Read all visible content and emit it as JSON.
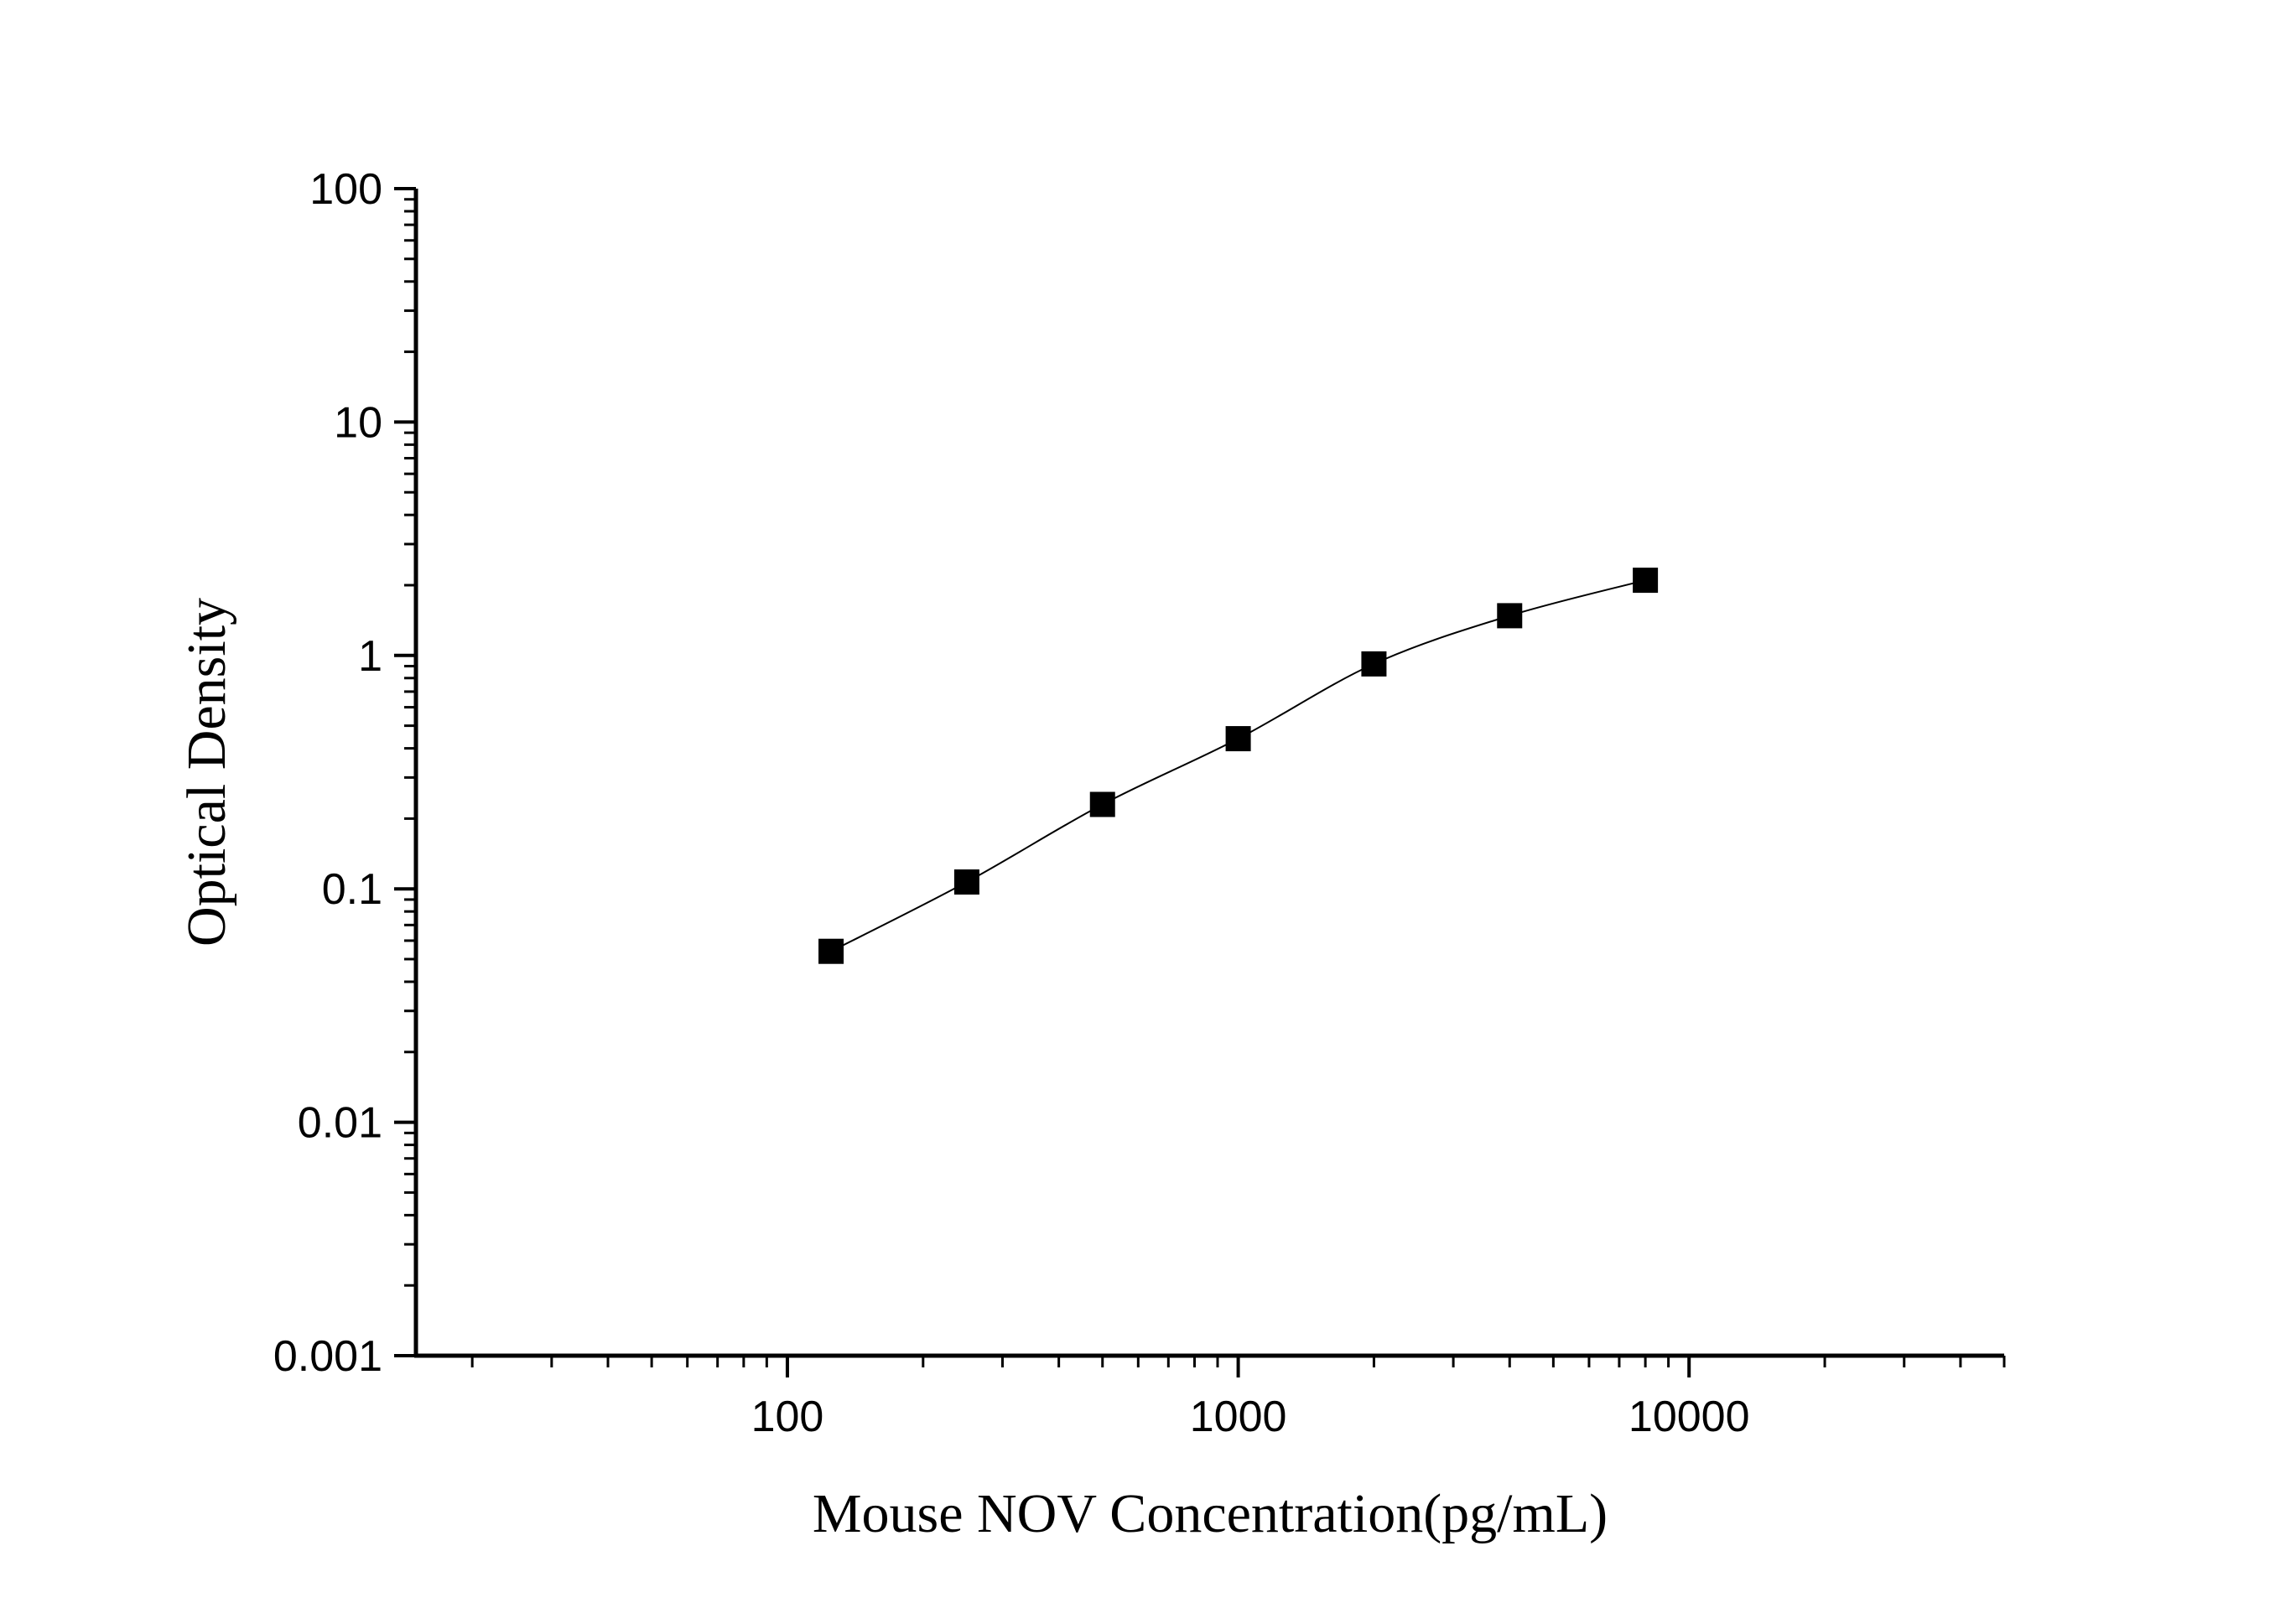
{
  "chart_data": {
    "type": "scatter",
    "title": "",
    "xlabel": "Mouse NOV Concentration(pg/mL)",
    "ylabel": "Optical Density",
    "x_scale": "log",
    "y_scale": "log",
    "xlim": [
      15,
      50000
    ],
    "ylim": [
      0.001,
      100
    ],
    "x_ticks": [
      {
        "value": 100,
        "label": "100"
      },
      {
        "value": 1000,
        "label": "1000"
      },
      {
        "value": 10000,
        "label": "10000"
      }
    ],
    "y_ticks": [
      {
        "value": 0.001,
        "label": "0.001"
      },
      {
        "value": 0.01,
        "label": "0.01"
      },
      {
        "value": 0.1,
        "label": "0.1"
      },
      {
        "value": 1,
        "label": "1"
      },
      {
        "value": 10,
        "label": "10"
      },
      {
        "value": 100,
        "label": "100"
      }
    ],
    "grid": false,
    "legend": "none",
    "series": [
      {
        "marker": "square",
        "connected": true,
        "color": "#000000",
        "x": [
          125,
          250,
          500,
          1000,
          2000,
          4000,
          8000
        ],
        "y": [
          0.054,
          0.107,
          0.23,
          0.44,
          0.92,
          1.48,
          2.1
        ]
      }
    ]
  }
}
